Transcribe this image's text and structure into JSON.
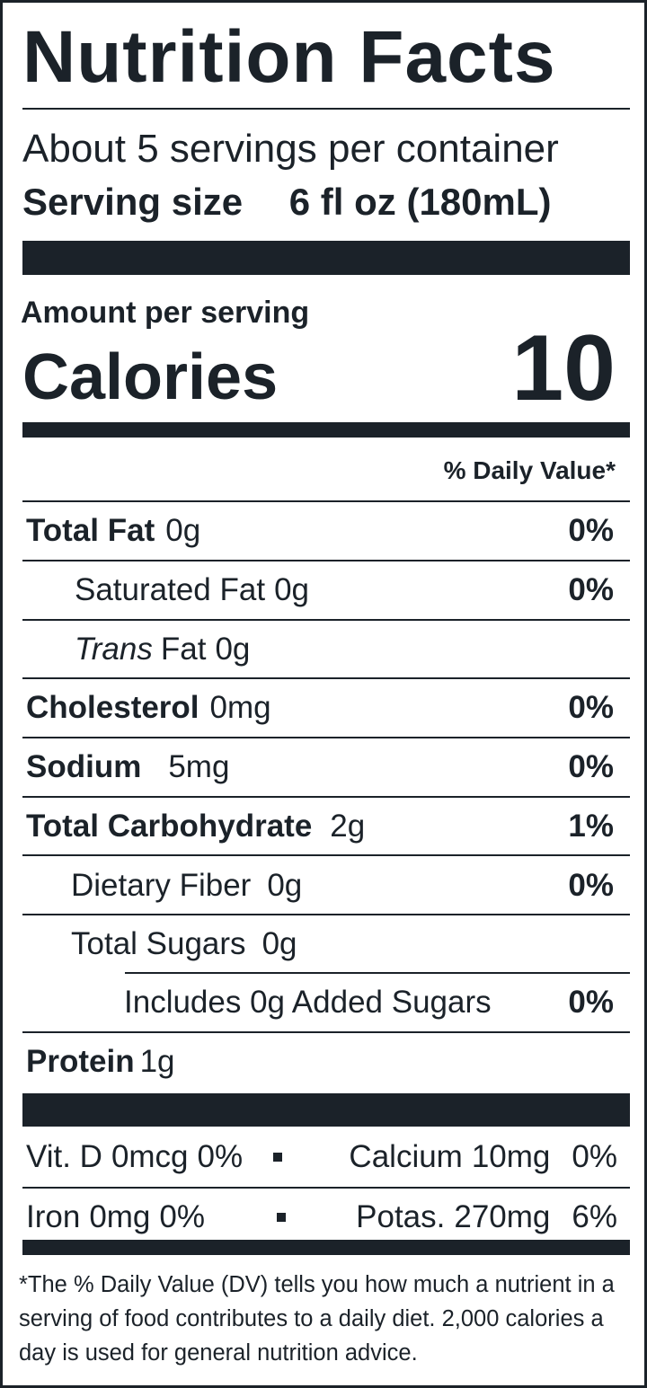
{
  "label": {
    "title": "Nutrition Facts",
    "servings": "About 5 servings per container",
    "serving_size_label": "Serving size",
    "serving_size": "6 fl oz (180mL)",
    "amount_per_serving": "Amount per serving",
    "calories_label": "Calories",
    "calories": 10,
    "daily_value_header": "% Daily Value*",
    "nutrients": [
      {
        "name": "Total Fat",
        "amount": "0g",
        "dv": "0%"
      },
      {
        "name": "Saturated Fat",
        "amount": "0g",
        "dv": "0%"
      },
      {
        "name_italic": "Trans",
        "name": "Fat",
        "amount": "0g"
      },
      {
        "name": "Cholesterol",
        "amount": "0mg",
        "dv": "0%"
      },
      {
        "name": "Sodium",
        "amount": "5mg",
        "dv": "0%"
      },
      {
        "name": "Total Carbohydrate",
        "amount": "2g",
        "dv": "1%"
      },
      {
        "name": "Dietary Fiber",
        "amount": "0g",
        "dv": "0%"
      },
      {
        "name": "Total Sugars",
        "amount": "0g"
      },
      {
        "name": "Includes 0g Added Sugars",
        "dv": "0%"
      },
      {
        "name": "Protein",
        "amount": "1g"
      }
    ],
    "vitamins": [
      {
        "name": "Vit. D",
        "amount": "0mcg",
        "dv": "0%"
      },
      {
        "name": "Calcium",
        "amount": "10mg",
        "dv": "0%"
      },
      {
        "name": "Iron",
        "amount": "0mg",
        "dv": "0%"
      },
      {
        "name": "Potas.",
        "amount": "270mg",
        "dv": "6%"
      }
    ],
    "footnote": "*The % Daily Value (DV) tells you how much a nutrient in a serving of food contributes to a daily diet. 2,000 calories a day is used for general nutrition advice."
  }
}
